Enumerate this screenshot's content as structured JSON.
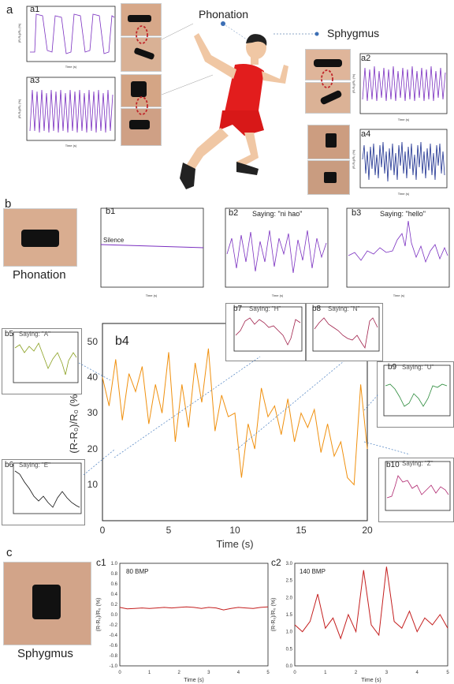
{
  "sections": {
    "a": "a",
    "b": "b",
    "c": "c"
  },
  "figure_a": {
    "phonation_label": "Phonation",
    "sphygmus_label": "Sphygmus",
    "panels": {
      "a1": {
        "label": "a1",
        "xlabel": "Time (s)",
        "ylabel": "(R-R₀)/R₀ (%)"
      },
      "a2": {
        "label": "a2",
        "xlabel": "Time (s)",
        "ylabel": "(R-R₀)/R₀ (%)"
      },
      "a3": {
        "label": "a3",
        "xlabel": "Time (s)",
        "ylabel": "(R-R₀)/R₀ (%)"
      },
      "a4": {
        "label": "a4",
        "xlabel": "Time (s)",
        "ylabel": "(R-R₀)/R₀ (%)"
      }
    }
  },
  "figure_b": {
    "phonation_caption": "Phonation",
    "b1": {
      "label": "b1",
      "annotation": "Silence",
      "xlabel": "Time (s)"
    },
    "b2": {
      "label": "b2",
      "title": "Saying: \"ni hao\"",
      "xlabel": "Time (s)"
    },
    "b3": {
      "label": "b3",
      "title": "Saying: \"hello\"",
      "xlabel": "Time (s)"
    },
    "b4": {
      "label": "b4",
      "xlabel": "Time (s)",
      "ylabel": "(R-R₀)/R₀ (%)",
      "xticks": [
        "0",
        "5",
        "10",
        "15",
        "20"
      ],
      "yticks": [
        "10",
        "20",
        "30",
        "40",
        "50"
      ]
    },
    "b5": {
      "label": "b5",
      "title": "Saying: \"A\""
    },
    "b6": {
      "label": "b6",
      "title": "Saying: \"E\""
    },
    "b7": {
      "label": "b7",
      "title": "Saying: \"H\""
    },
    "b8": {
      "label": "b8",
      "title": "Saying: \"N\""
    },
    "b9": {
      "label": "b9",
      "title": "Saying: \"U\""
    },
    "b10": {
      "label": "b10",
      "title": "Saying: \"Z\""
    }
  },
  "figure_c": {
    "sphygmus_caption": "Sphygmus",
    "c1": {
      "label": "c1",
      "annotation": "80 BMP",
      "xlabel": "Time (s)",
      "ylabel": "(R-R₀)/R₀ (%)",
      "xticks": [
        "0",
        "1",
        "2",
        "3",
        "4",
        "5"
      ],
      "yticks": [
        "1.0",
        "0.8",
        "0.6",
        "0.4",
        "0.2",
        "0.0",
        "-0.2",
        "-0.4",
        "-0.6",
        "-0.8",
        "-1.0"
      ]
    },
    "c2": {
      "label": "c2",
      "annotation": "140 BMP",
      "xlabel": "Time (s)",
      "ylabel": "(R-R₀)/R₀ (%)",
      "xticks": [
        "0",
        "1",
        "2",
        "3",
        "4",
        "5"
      ],
      "yticks": [
        "3.0",
        "2.5",
        "2.0",
        "1.5",
        "1.0",
        "0.5",
        "0.0"
      ]
    }
  },
  "chart_data": [
    {
      "id": "b4",
      "type": "line",
      "xlabel": "Time (s)",
      "ylabel": "(R-R₀)/R₀ (%)",
      "xlim": [
        0,
        20
      ],
      "ylim": [
        0,
        55
      ],
      "x": [
        0,
        0.5,
        1,
        1.5,
        2,
        2.5,
        3,
        3.5,
        4,
        4.5,
        5,
        5.5,
        6,
        6.5,
        7,
        7.5,
        8,
        8.5,
        9,
        9.5,
        10,
        10.5,
        11,
        11.5,
        12,
        12.5,
        13,
        13.5,
        14,
        14.5,
        15,
        15.5,
        16,
        16.5,
        17,
        17.5,
        18,
        18.5,
        19,
        19.5,
        20
      ],
      "series": [
        {
          "values": [
            40,
            32,
            45,
            28,
            41,
            36,
            43,
            27,
            38,
            30,
            47,
            22,
            38,
            26,
            44,
            33,
            48,
            25,
            35,
            29,
            30,
            12,
            27,
            20,
            37,
            29,
            32,
            24,
            34,
            22,
            30,
            26,
            31,
            19,
            27,
            18,
            22,
            12,
            10,
            38,
            20
          ],
          "color": "#f0900e"
        }
      ]
    },
    {
      "id": "c1",
      "type": "line",
      "xlabel": "Time (s)",
      "ylabel": "(R-R₀)/R₀ (%)",
      "xlim": [
        0,
        5
      ],
      "ylim": [
        -1,
        1
      ],
      "x": [
        0,
        0.25,
        0.5,
        0.75,
        1,
        1.25,
        1.5,
        1.75,
        2,
        2.25,
        2.5,
        2.75,
        3,
        3.25,
        3.5,
        3.75,
        4,
        4.25,
        4.5,
        4.75,
        5
      ],
      "series": [
        {
          "values": [
            0.14,
            0.11,
            0.12,
            0.13,
            0.12,
            0.13,
            0.14,
            0.13,
            0.14,
            0.15,
            0.14,
            0.12,
            0.14,
            0.13,
            0.09,
            0.12,
            0.14,
            0.13,
            0.12,
            0.14,
            0.15
          ],
          "color": "#c41e1e"
        }
      ]
    },
    {
      "id": "c2",
      "type": "line",
      "xlabel": "Time (s)",
      "ylabel": "(R-R₀)/R₀ (%)",
      "xlim": [
        0,
        5
      ],
      "ylim": [
        0,
        3
      ],
      "x": [
        0,
        0.25,
        0.5,
        0.75,
        1,
        1.25,
        1.5,
        1.75,
        2,
        2.25,
        2.5,
        2.75,
        3,
        3.25,
        3.5,
        3.75,
        4,
        4.25,
        4.5,
        4.75,
        5
      ],
      "series": [
        {
          "values": [
            1.2,
            1.0,
            1.3,
            2.1,
            1.1,
            1.4,
            0.8,
            1.5,
            1.0,
            2.8,
            1.2,
            0.9,
            2.9,
            1.3,
            1.1,
            1.6,
            1.0,
            1.4,
            1.2,
            1.5,
            1.1
          ],
          "color": "#c41e1e"
        }
      ]
    }
  ]
}
